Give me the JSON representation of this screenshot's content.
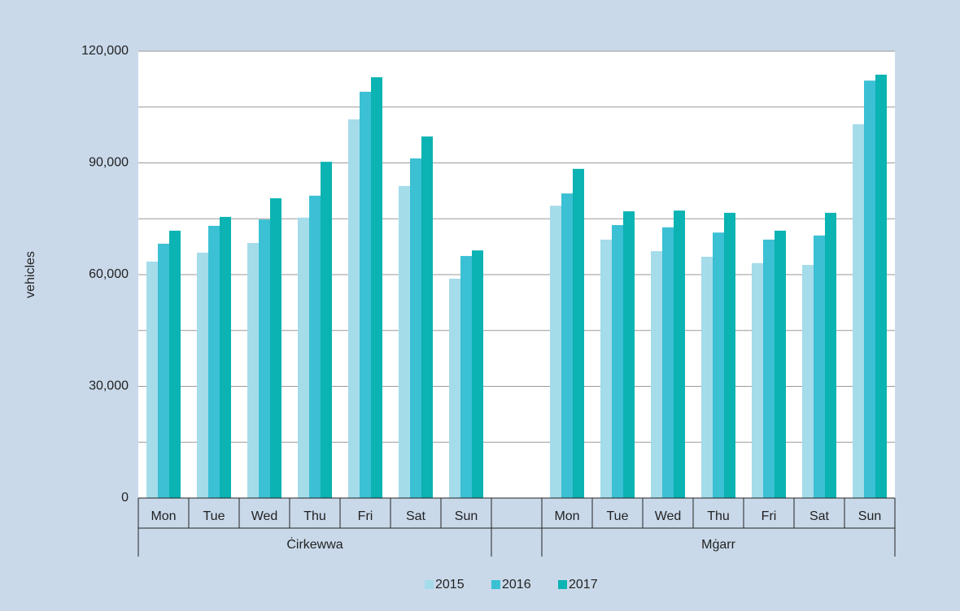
{
  "chart_data": {
    "type": "bar",
    "y_axis_label": "vehicles",
    "categories": [
      "Mon",
      "Tue",
      "Wed",
      "Thu",
      "Fri",
      "Sat",
      "Sun",
      null,
      "Mon",
      "Tue",
      "Wed",
      "Thu",
      "Fri",
      "Sat",
      "Sun"
    ],
    "group_labels": [
      "Ċirkewwa",
      "Mġarr"
    ],
    "series": [
      {
        "name": "2015",
        "color": "#a4dcea",
        "values": [
          63500,
          65900,
          68500,
          75300,
          101700,
          83800,
          58900,
          null,
          78500,
          69400,
          66300,
          64800,
          63100,
          62600,
          100400
        ]
      },
      {
        "name": "2016",
        "color": "#3bc0d4",
        "values": [
          68300,
          73100,
          74800,
          81200,
          109100,
          91200,
          65000,
          null,
          81800,
          73300,
          72700,
          71300,
          69400,
          70500,
          112100
        ]
      },
      {
        "name": "2017",
        "color": "#0bb3b3",
        "values": [
          71800,
          75500,
          80500,
          90300,
          113000,
          97100,
          66500,
          null,
          88400,
          77000,
          77200,
          76600,
          71800,
          76600,
          113700
        ]
      }
    ],
    "ylim": [
      0,
      120000
    ],
    "yticks": [
      0,
      {
        "value": 30000,
        "label": "30,000"
      },
      {
        "value": 60000,
        "label": "60,000"
      },
      {
        "value": 90000,
        "label": "90,000"
      },
      {
        "value": 120000,
        "label": "120,000"
      }
    ],
    "minor_yticks": [
      15000,
      45000,
      75000,
      105000
    ],
    "grid": true,
    "legend": "bottom"
  }
}
